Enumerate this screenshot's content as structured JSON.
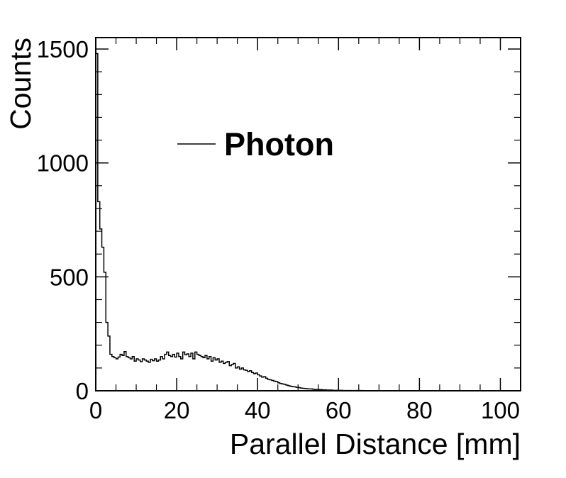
{
  "chart_data": {
    "type": "histogram",
    "xlabel": "Parallel Distance [mm]",
    "ylabel": "Counts",
    "xlim": [
      0,
      105
    ],
    "ylim": [
      0,
      1550
    ],
    "xticks": [
      0,
      20,
      40,
      60,
      80,
      100
    ],
    "yticks": [
      0,
      500,
      1000,
      1500
    ],
    "grid": false,
    "legend": {
      "position": "upper-center",
      "entries": [
        {
          "label": "Photon",
          "style": "line"
        }
      ]
    },
    "series": [
      {
        "name": "Photon",
        "bin_width": 0.5,
        "x": [
          0,
          0.5,
          1,
          1.5,
          2,
          2.5,
          3,
          3.5,
          4,
          4.5,
          5,
          5.5,
          6,
          6.5,
          7,
          7.5,
          8,
          8.5,
          9,
          9.5,
          10,
          10.5,
          11,
          11.5,
          12,
          12.5,
          13,
          13.5,
          14,
          14.5,
          15,
          15.5,
          16,
          16.5,
          17,
          17.5,
          18,
          18.5,
          19,
          19.5,
          20,
          20.5,
          21,
          21.5,
          22,
          22.5,
          23,
          23.5,
          24,
          24.5,
          25,
          25.5,
          26,
          26.5,
          27,
          27.5,
          28,
          28.5,
          29,
          29.5,
          30,
          30.5,
          31,
          31.5,
          32,
          32.5,
          33,
          33.5,
          34,
          34.5,
          35,
          35.5,
          36,
          36.5,
          37,
          37.5,
          38,
          38.5,
          39,
          39.5,
          40,
          40.5,
          41,
          41.5,
          42,
          42.5,
          43,
          43.5,
          44,
          44.5,
          45,
          45.5,
          46,
          46.5,
          47,
          47.5,
          48,
          48.5,
          49,
          49.5,
          50,
          50.5,
          51,
          51.5,
          52,
          52.5,
          53,
          53.5,
          54,
          54.5,
          55,
          55.5,
          56,
          56.5,
          57,
          57.5,
          58,
          58.5,
          59,
          59.5,
          60,
          61,
          62,
          63,
          64,
          65,
          66,
          68,
          70,
          75,
          80,
          85,
          90,
          95,
          100
        ],
        "values": [
          1480,
          830,
          710,
          630,
          520,
          300,
          240,
          160,
          150,
          145,
          140,
          148,
          160,
          155,
          172,
          150,
          145,
          140,
          150,
          130,
          140,
          135,
          128,
          140,
          135,
          130,
          125,
          138,
          132,
          140,
          130,
          135,
          150,
          140,
          160,
          170,
          155,
          150,
          160,
          148,
          165,
          150,
          140,
          170,
          158,
          162,
          150,
          165,
          140,
          170,
          160,
          155,
          150,
          145,
          155,
          140,
          150,
          130,
          145,
          135,
          140,
          125,
          130,
          120,
          125,
          128,
          110,
          115,
          120,
          100,
          105,
          95,
          100,
          92,
          90,
          85,
          88,
          80,
          75,
          78,
          70,
          65,
          60,
          62,
          55,
          50,
          48,
          45,
          42,
          40,
          35,
          32,
          30,
          28,
          25,
          22,
          20,
          18,
          17,
          15,
          14,
          12,
          11,
          10,
          9,
          8,
          8,
          7,
          6,
          6,
          5,
          5,
          4,
          4,
          3,
          3,
          3,
          2,
          2,
          2,
          2,
          1,
          1,
          1,
          1,
          1,
          0,
          0,
          0,
          0,
          0,
          0,
          0,
          0
        ]
      }
    ]
  }
}
